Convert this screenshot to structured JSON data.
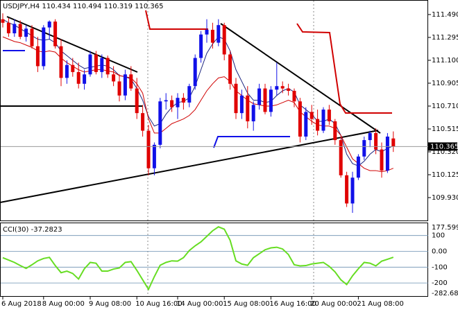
{
  "chart_data": [
    {
      "type": "candlestick",
      "title": "USDJPY,H4",
      "categories": [
        "6 Aug 2018",
        null,
        null,
        null,
        null,
        null,
        null,
        "8 Aug 00:00",
        null,
        null,
        null,
        null,
        null,
        null,
        null,
        "9 Aug 08:00",
        null,
        null,
        null,
        null,
        null,
        null,
        null,
        "10 Aug 16:00",
        null,
        null,
        null,
        null,
        null,
        null,
        "14 Aug 00:00",
        null,
        null,
        null,
        null,
        null,
        null,
        null,
        "15 Aug 08:00",
        null,
        null,
        null,
        null,
        null,
        null,
        null,
        "16 Aug 16:00",
        null,
        null,
        null,
        null,
        null,
        null,
        "20 Aug 00:00",
        null,
        null,
        null,
        null,
        null,
        null,
        null,
        "21 Aug 08:00",
        null,
        null,
        null,
        null,
        null,
        null
      ],
      "open": [
        111.45,
        111.42,
        111.33,
        111.41,
        111.3,
        111.37,
        111.22,
        111.05,
        111.38,
        111.43,
        111.22,
        110.95,
        111.06,
        111.0,
        110.9,
        110.98,
        111.15,
        111.0,
        111.12,
        110.98,
        110.92,
        110.8,
        110.98,
        110.86,
        110.65,
        110.5,
        110.18,
        110.38,
        110.75,
        110.76,
        110.7,
        110.78,
        110.74,
        110.88,
        111.12,
        111.32,
        111.36,
        111.25,
        111.4,
        111.15,
        110.9,
        110.65,
        110.8,
        110.58,
        110.72,
        110.86,
        110.66,
        110.85,
        110.88,
        110.86,
        110.84,
        110.75,
        110.45,
        110.66,
        110.6,
        110.5,
        110.68,
        110.58,
        110.42,
        110.12,
        109.88,
        110.1,
        110.28,
        110.42,
        110.48,
        110.34,
        110.16,
        110.434
      ],
      "high": [
        111.5,
        111.46,
        111.45,
        111.44,
        111.4,
        111.4,
        111.3,
        111.4,
        111.44,
        111.45,
        111.28,
        111.1,
        111.12,
        111.08,
        111.02,
        111.18,
        111.18,
        111.15,
        111.14,
        111.05,
        110.98,
        111.02,
        111.05,
        110.95,
        110.72,
        110.55,
        110.4,
        110.78,
        110.82,
        110.8,
        110.82,
        110.82,
        110.9,
        111.15,
        111.35,
        111.45,
        111.42,
        111.45,
        111.42,
        111.18,
        110.95,
        110.85,
        110.88,
        110.75,
        110.9,
        110.9,
        110.88,
        111.08,
        110.92,
        110.9,
        110.86,
        110.78,
        110.7,
        110.72,
        110.68,
        110.7,
        110.72,
        110.6,
        110.45,
        110.15,
        110.15,
        110.3,
        110.45,
        110.5,
        110.52,
        110.4,
        110.48,
        110.494
      ],
      "low": [
        111.38,
        111.3,
        111.3,
        111.28,
        111.26,
        111.2,
        111.0,
        111.02,
        111.28,
        111.2,
        110.88,
        110.9,
        110.96,
        110.86,
        110.85,
        110.96,
        110.98,
        110.95,
        110.95,
        110.88,
        110.75,
        110.76,
        110.84,
        110.6,
        110.45,
        110.12,
        110.12,
        110.35,
        110.68,
        110.66,
        110.6,
        110.68,
        110.7,
        110.85,
        111.08,
        111.25,
        111.2,
        111.22,
        111.1,
        110.85,
        110.6,
        110.6,
        110.52,
        110.5,
        110.68,
        110.64,
        110.62,
        110.8,
        110.82,
        110.8,
        110.7,
        110.4,
        110.42,
        110.55,
        110.46,
        110.48,
        110.55,
        110.38,
        110.1,
        109.85,
        109.8,
        110.08,
        110.25,
        110.36,
        110.3,
        110.1,
        110.14,
        110.319
      ],
      "close": [
        111.42,
        111.33,
        111.41,
        111.3,
        111.37,
        111.22,
        111.05,
        111.38,
        111.43,
        111.22,
        110.95,
        111.06,
        111.0,
        110.9,
        110.98,
        111.15,
        111.0,
        111.12,
        110.98,
        110.92,
        110.8,
        110.98,
        110.86,
        110.65,
        110.5,
        110.18,
        110.38,
        110.75,
        110.76,
        110.7,
        110.78,
        110.74,
        110.88,
        111.12,
        111.32,
        111.36,
        111.25,
        111.4,
        111.15,
        110.9,
        110.65,
        110.8,
        110.58,
        110.72,
        110.86,
        110.66,
        110.85,
        110.88,
        110.86,
        110.84,
        110.75,
        110.45,
        110.66,
        110.6,
        110.5,
        110.68,
        110.58,
        110.42,
        110.12,
        109.88,
        110.1,
        110.28,
        110.42,
        110.48,
        110.34,
        110.16,
        110.45,
        110.365
      ],
      "up_color": "#1010e8",
      "down_color": "#e00000",
      "lines": [
        {
          "color": "#1a237e",
          "values": [
            111.45,
            111.42,
            111.4,
            111.37,
            111.34,
            111.31,
            111.28,
            111.27,
            111.28,
            111.25,
            111.18,
            111.14,
            111.1,
            111.06,
            111.03,
            111.04,
            111.05,
            111.06,
            111.05,
            111.02,
            110.97,
            110.96,
            110.94,
            110.86,
            110.76,
            110.62,
            110.54,
            110.56,
            110.64,
            110.7,
            110.74,
            110.75,
            110.78,
            110.88,
            111.02,
            111.16,
            111.24,
            111.3,
            111.28,
            111.18,
            111.02,
            110.92,
            110.82,
            110.76,
            110.76,
            110.74,
            110.75,
            110.8,
            110.84,
            110.86,
            110.83,
            110.72,
            110.68,
            110.64,
            110.58,
            110.58,
            110.6,
            110.56,
            110.46,
            110.3,
            110.22,
            110.2,
            110.24,
            110.3,
            110.34,
            110.32,
            110.35,
            110.37
          ]
        },
        {
          "color": "#d00000",
          "values": [
            111.3,
            111.28,
            111.26,
            111.25,
            111.23,
            111.21,
            111.18,
            111.17,
            111.18,
            111.17,
            111.12,
            111.08,
            111.05,
            111.02,
            111.0,
            111.01,
            111.02,
            111.02,
            111.01,
            111.0,
            110.97,
            110.96,
            110.95,
            110.9,
            110.82,
            110.6,
            110.48,
            110.48,
            110.52,
            110.56,
            110.58,
            110.6,
            110.63,
            110.68,
            110.76,
            110.84,
            110.9,
            110.95,
            110.96,
            110.92,
            110.84,
            110.8,
            110.76,
            110.73,
            110.72,
            110.71,
            110.71,
            110.72,
            110.74,
            110.76,
            110.74,
            110.66,
            110.62,
            110.58,
            110.55,
            110.54,
            110.54,
            110.52,
            110.46,
            110.36,
            110.26,
            110.22,
            110.18,
            110.16,
            110.16,
            110.15,
            110.16,
            110.18
          ]
        }
      ],
      "ylim": [
        109.735,
        111.608
      ],
      "yticks": [
        {
          "value": 111.49,
          "label": "111.490"
        },
        {
          "value": 111.295,
          "label": "111.295"
        },
        {
          "value": 111.1,
          "label": "111.100"
        },
        {
          "value": 110.905,
          "label": "110.905"
        },
        {
          "value": 110.71,
          "label": "110.710"
        },
        {
          "value": 110.515,
          "label": "110.515"
        },
        {
          "value": 110.32,
          "label": "110.320"
        },
        {
          "value": 110.125,
          "label": "110.125"
        },
        {
          "value": 109.93,
          "label": "109.930"
        }
      ]
    },
    {
      "type": "line",
      "title": "CCI(30)",
      "color": "#66dd22",
      "values": [
        -40,
        -55,
        -70,
        -90,
        -108,
        -85,
        -60,
        -45,
        -38,
        -90,
        -135,
        -125,
        -140,
        -175,
        -110,
        -70,
        -75,
        -125,
        -125,
        -112,
        -105,
        -70,
        -65,
        -120,
        -180,
        -240,
        -160,
        -88,
        -70,
        -60,
        -62,
        -40,
        5,
        35,
        60,
        95,
        130,
        155,
        140,
        70,
        -60,
        -80,
        -88,
        -40,
        -15,
        10,
        22,
        26,
        15,
        -20,
        -85,
        -92,
        -90,
        -80,
        -75,
        -70,
        -95,
        -130,
        -180,
        -210,
        -155,
        -110,
        -70,
        -75,
        -92,
        -62,
        -50,
        -37.2823
      ],
      "ylim": [
        -282.6879,
        177.5993
      ],
      "yticks": [
        100,
        {
          "value": 0,
          "label": "0.00"
        },
        -100,
        -200
      ]
    }
  ]
}
